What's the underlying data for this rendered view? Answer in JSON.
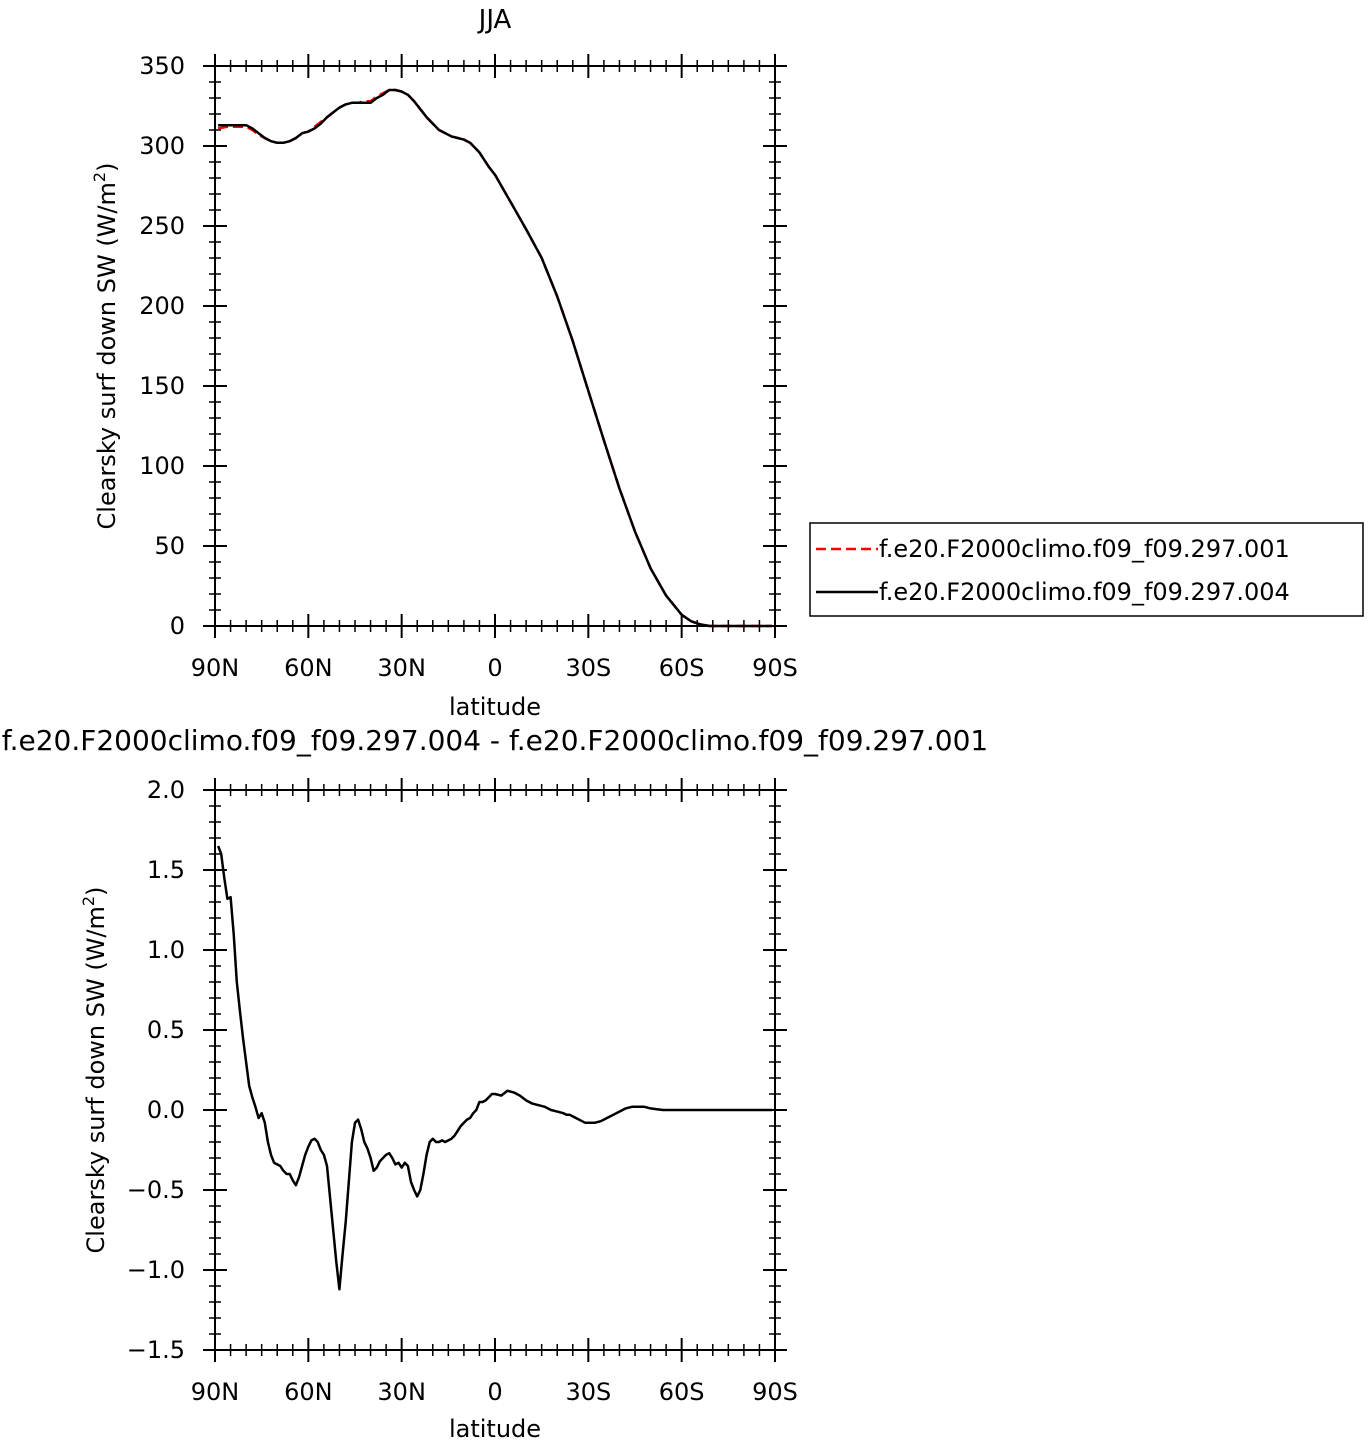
{
  "chart_data": [
    {
      "type": "line",
      "title": "JJA",
      "xlabel": "latitude",
      "ylabel": "Clearsky surf down SW (W/m",
      "ylabel_sup": "2",
      "ylabel_end": ")",
      "xlim": [
        90,
        -90
      ],
      "ylim": [
        0,
        350
      ],
      "x_ticks": [
        90,
        60,
        30,
        0,
        -30,
        -60,
        -90
      ],
      "x_tick_labels": [
        "90N",
        "60N",
        "30N",
        "0",
        "30S",
        "60S",
        "90S"
      ],
      "y_ticks": [
        0,
        50,
        100,
        150,
        200,
        250,
        300,
        350
      ],
      "y_tick_labels": [
        "0",
        "50",
        "100",
        "150",
        "200",
        "250",
        "300",
        "350"
      ],
      "legend_position": "right",
      "series": [
        {
          "name": "f.e20.F2000climo.f09_f09.297.001",
          "color": "#ff0000",
          "dash": "dashed",
          "x": [
            89,
            86,
            83,
            80,
            78,
            76,
            74,
            72,
            70,
            68,
            66,
            64,
            62,
            60,
            58,
            56,
            54,
            52,
            50,
            48,
            46,
            44,
            42,
            40,
            38,
            36,
            34,
            32,
            30,
            28,
            26,
            24,
            22,
            20,
            18,
            16,
            14,
            12,
            10,
            8,
            5,
            2,
            0,
            -5,
            -10,
            -15,
            -20,
            -25,
            -30,
            -35,
            -40,
            -45,
            -50,
            -55,
            -60,
            -63,
            -66,
            -69,
            -72,
            -75,
            -78,
            -81,
            -85,
            -89
          ],
          "y": [
            311,
            312,
            312,
            312,
            310,
            307,
            305,
            303,
            302,
            302,
            303,
            305,
            308,
            309,
            312,
            315,
            318,
            321,
            324,
            326,
            327,
            327,
            328,
            328,
            331,
            333,
            335,
            335,
            334,
            332,
            328,
            323,
            318,
            314,
            310,
            308,
            306,
            305,
            304,
            302,
            296,
            287,
            282,
            265,
            248,
            230,
            206,
            178,
            147,
            116,
            86,
            59,
            36,
            19,
            7,
            3,
            1,
            0,
            0,
            0,
            0,
            0,
            0,
            0
          ]
        },
        {
          "name": "f.e20.F2000climo.f09_f09.297.004",
          "color": "#000000",
          "dash": "solid",
          "x": [
            89,
            86,
            83,
            80,
            78,
            76,
            74,
            72,
            70,
            68,
            66,
            64,
            62,
            60,
            58,
            56,
            54,
            52,
            50,
            48,
            46,
            44,
            42,
            40,
            38,
            36,
            34,
            32,
            30,
            28,
            26,
            24,
            22,
            20,
            18,
            16,
            14,
            12,
            10,
            8,
            5,
            2,
            0,
            -5,
            -10,
            -15,
            -20,
            -25,
            -30,
            -35,
            -40,
            -45,
            -50,
            -55,
            -60,
            -63,
            -66,
            -69,
            -72,
            -75,
            -78,
            -81,
            -85,
            -89
          ],
          "y": [
            313,
            313,
            313,
            313,
            311,
            308,
            305,
            303,
            302,
            302,
            303,
            305,
            308,
            309,
            311,
            314,
            318,
            321,
            324,
            326,
            327,
            327,
            327,
            327,
            330,
            332,
            335,
            335,
            334,
            332,
            328,
            323,
            318,
            314,
            310,
            308,
            306,
            305,
            304,
            302,
            296,
            287,
            282,
            265,
            248,
            230,
            206,
            178,
            147,
            116,
            86,
            59,
            36,
            19,
            7,
            3,
            1,
            0,
            0,
            0,
            0,
            0,
            0,
            0
          ]
        }
      ]
    },
    {
      "type": "line",
      "title": "f.e20.F2000climo.f09_f09.297.004 - f.e20.F2000climo.f09_f09.297.001",
      "xlabel": "latitude",
      "ylabel": "Clearsky surf down SW (W/m",
      "ylabel_sup": "2",
      "ylabel_end": ")",
      "xlim": [
        90,
        -90
      ],
      "ylim": [
        -1.5,
        2.0
      ],
      "x_ticks": [
        90,
        60,
        30,
        0,
        -30,
        -60,
        -90
      ],
      "x_tick_labels": [
        "90N",
        "60N",
        "30N",
        "0",
        "30S",
        "60S",
        "90S"
      ],
      "y_ticks": [
        -1.5,
        -1.0,
        -0.5,
        0.0,
        0.5,
        1.0,
        1.5,
        2.0
      ],
      "y_tick_labels": [
        "−1.5",
        "−1.0",
        "−0.5",
        "0.0",
        "0.5",
        "1.0",
        "1.5",
        "2.0"
      ],
      "series": [
        {
          "color": "#000000",
          "dash": "solid",
          "x": [
            89,
            88,
            87,
            86,
            85,
            84,
            83,
            82,
            81,
            80,
            79,
            78,
            77,
            76,
            75,
            74,
            73,
            72,
            71,
            70,
            69,
            68,
            67,
            66,
            65,
            64,
            63,
            62,
            61,
            60,
            59,
            58,
            57,
            56,
            55,
            54,
            53,
            52,
            51,
            50,
            49,
            48,
            47,
            46,
            45,
            44,
            43,
            42,
            41,
            40,
            39,
            38,
            37,
            36,
            35,
            34,
            33,
            32,
            31,
            30,
            29,
            28,
            27,
            26,
            25,
            24,
            23,
            22,
            21,
            20,
            19,
            18,
            17,
            16,
            15,
            14,
            13,
            12,
            11,
            10,
            9,
            8,
            7,
            6,
            5,
            4,
            3,
            2,
            1,
            0,
            -2,
            -4,
            -6,
            -8,
            -10,
            -12,
            -14,
            -16,
            -18,
            -20,
            -22,
            -23,
            -24,
            -26,
            -28,
            -29,
            -30,
            -31,
            -32,
            -34,
            -36,
            -38,
            -40,
            -42,
            -44,
            -46,
            -48,
            -50,
            -52,
            -54,
            -56,
            -58,
            -60,
            -62,
            -64,
            -66,
            -68,
            -70,
            -72,
            -74,
            -76,
            -78,
            -80,
            -85,
            -89
          ],
          "y": [
            1.65,
            1.6,
            1.45,
            1.32,
            1.33,
            1.1,
            0.8,
            0.62,
            0.45,
            0.3,
            0.15,
            0.08,
            0.02,
            -0.05,
            -0.02,
            -0.08,
            -0.2,
            -0.28,
            -0.33,
            -0.34,
            -0.35,
            -0.38,
            -0.4,
            -0.4,
            -0.44,
            -0.47,
            -0.42,
            -0.35,
            -0.28,
            -0.23,
            -0.19,
            -0.18,
            -0.2,
            -0.25,
            -0.28,
            -0.35,
            -0.55,
            -0.75,
            -0.95,
            -1.12,
            -0.9,
            -0.7,
            -0.45,
            -0.2,
            -0.08,
            -0.06,
            -0.12,
            -0.2,
            -0.24,
            -0.3,
            -0.38,
            -0.36,
            -0.32,
            -0.3,
            -0.28,
            -0.27,
            -0.3,
            -0.34,
            -0.33,
            -0.36,
            -0.33,
            -0.35,
            -0.45,
            -0.5,
            -0.54,
            -0.5,
            -0.4,
            -0.28,
            -0.2,
            -0.18,
            -0.2,
            -0.2,
            -0.19,
            -0.2,
            -0.19,
            -0.18,
            -0.16,
            -0.13,
            -0.1,
            -0.08,
            -0.06,
            -0.05,
            -0.02,
            0.0,
            0.05,
            0.05,
            0.06,
            0.08,
            0.1,
            0.1,
            0.09,
            0.12,
            0.11,
            0.09,
            0.06,
            0.04,
            0.03,
            0.02,
            0.0,
            -0.01,
            -0.02,
            -0.03,
            -0.03,
            -0.05,
            -0.07,
            -0.08,
            -0.08,
            -0.08,
            -0.08,
            -0.07,
            -0.05,
            -0.03,
            -0.01,
            0.01,
            0.02,
            0.02,
            0.02,
            0.01,
            0.005,
            0.0,
            0.0,
            0.0,
            0.0,
            0.0,
            0.0,
            0.0,
            0.0,
            0.0,
            0.0,
            0.0,
            0.0,
            0.0,
            0.0,
            0.0,
            0.0
          ]
        }
      ]
    }
  ]
}
